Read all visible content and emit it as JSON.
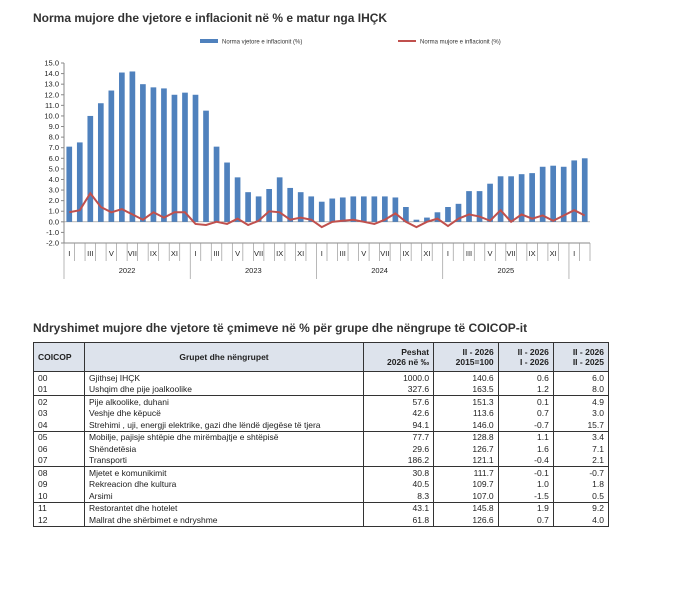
{
  "chart_data": {
    "type": "bar-line",
    "title": "Norma mujore dhe vjetore e inflacionit në % e matur nga IHÇK",
    "categories": [
      "I",
      null,
      "III",
      null,
      "V",
      null,
      "VII",
      null,
      "IX",
      null,
      "XI",
      null,
      "I",
      null,
      "III",
      null,
      "V",
      null,
      "VII",
      null,
      "IX",
      null,
      "XI",
      null,
      "I",
      null,
      "III",
      null,
      "V",
      null,
      "VII",
      null,
      "IX",
      null,
      "XI",
      null,
      "I",
      null,
      "III",
      null,
      "V",
      null,
      "VII",
      null,
      "IX",
      null,
      "XI",
      null,
      "I",
      null
    ],
    "year_labels": [
      "2022",
      "2023",
      "2024",
      "2025"
    ],
    "series": [
      {
        "name": "Norma vjetore e inflacionit (%)",
        "color": "#4f81bd",
        "kind": "bar",
        "values": [
          7.1,
          7.5,
          10.0,
          11.2,
          12.4,
          14.1,
          14.2,
          13.0,
          12.7,
          12.6,
          12.0,
          12.2,
          12.0,
          10.5,
          7.1,
          5.6,
          4.2,
          2.8,
          2.4,
          3.1,
          4.2,
          3.2,
          2.8,
          2.4,
          1.9,
          2.2,
          2.3,
          2.4,
          2.4,
          2.4,
          2.4,
          2.3,
          1.4,
          0.2,
          0.4,
          0.9,
          1.4,
          1.7,
          2.9,
          2.9,
          3.6,
          4.3,
          4.3,
          4.5,
          4.6,
          5.2,
          5.3,
          5.2,
          5.8,
          6.0
        ]
      },
      {
        "name": "Norma mujore e inflacionit (%)",
        "color": "#c0504d",
        "kind": "line",
        "values": [
          0.9,
          1.1,
          2.7,
          1.4,
          0.9,
          1.2,
          0.7,
          0.2,
          0.9,
          0.4,
          0.9,
          0.9,
          -0.2,
          -0.3,
          0.0,
          -0.2,
          0.3,
          -0.3,
          0.1,
          1.0,
          0.9,
          0.2,
          0.4,
          0.2,
          -0.5,
          0.0,
          0.1,
          0.2,
          0.0,
          -0.2,
          0.2,
          0.8,
          0.0,
          -0.5,
          0.0,
          0.3,
          -0.4,
          0.3,
          0.7,
          0.5,
          0.1,
          1.1,
          0.0,
          0.7,
          0.3,
          0.6,
          0.1,
          0.6,
          1.1,
          0.6
        ]
      }
    ],
    "ylim": [
      -2,
      15
    ],
    "yticks": [
      {
        "value": -2,
        "label": "-2.0"
      },
      {
        "value": -1,
        "label": "-1.0"
      },
      {
        "value": 0,
        "label": "0.0"
      },
      {
        "value": 1,
        "label": "1.0"
      },
      {
        "value": 2,
        "label": "2.0"
      },
      {
        "value": 3,
        "label": "3.0"
      },
      {
        "value": 4,
        "label": "4.0"
      },
      {
        "value": 5,
        "label": "5.0"
      },
      {
        "value": 6,
        "label": "6.0"
      },
      {
        "value": 7,
        "label": "7.0"
      },
      {
        "value": 8,
        "label": "8.0"
      },
      {
        "value": 9,
        "label": "9.0"
      },
      {
        "value": 10,
        "label": "10.0"
      },
      {
        "value": 11,
        "label": "11.0"
      },
      {
        "value": 12,
        "label": "12.0"
      },
      {
        "value": 13,
        "label": "13.0"
      },
      {
        "value": 14,
        "label": "14.0"
      },
      {
        "value": 15,
        "label": "15.0"
      }
    ],
    "grid": false,
    "legend": "top"
  },
  "table": {
    "title": "Ndryshimet mujore dhe vjetore të çmimeve në % për grupe dhe nëngrupe të COICOP-it",
    "headers": [
      [
        "COICOP"
      ],
      [
        "Grupet dhe nëngrupet"
      ],
      [
        "Peshat",
        "2026 në ‰"
      ],
      [
        "II - 2026",
        "2015=100"
      ],
      [
        "II - 2026",
        "I - 2026"
      ],
      [
        "II - 2026",
        "II - 2025"
      ]
    ],
    "rows": [
      [
        "00",
        "Gjithsej IHÇK",
        "1000.0",
        "140.6",
        "0.6",
        "6.0"
      ],
      [
        "01",
        "Ushqim dhe pije joalkoolike",
        "327.6",
        "163.5",
        "1.2",
        "8.0"
      ],
      [
        "02",
        "Pije alkoolike, duhani",
        "57.6",
        "151.3",
        "0.1",
        "4.9"
      ],
      [
        "03",
        "Veshje dhe këpucë",
        "42.6",
        "113.6",
        "0.7",
        "3.0"
      ],
      [
        "04",
        "Strehimi , uji, energji elektrike, gazi dhe lëndë djegëse të tjera",
        "94.1",
        "146.0",
        "-0.7",
        "15.7"
      ],
      [
        "05",
        "Mobilje, pajisje shtëpie dhe mirëmbajtje e shtëpisë",
        "77.7",
        "128.8",
        "1.1",
        "3.4"
      ],
      [
        "06",
        "Shëndetësia",
        "29.6",
        "126.7",
        "1.6",
        "7.1"
      ],
      [
        "07",
        "Transporti",
        "186.2",
        "121.1",
        "-0.4",
        "2.1"
      ],
      [
        "08",
        "Mjetet e komunikimit",
        "30.8",
        "111.7",
        "-0.1",
        "-0.7"
      ],
      [
        "09",
        "Rekreacion dhe kultura",
        "40.5",
        "109.7",
        "1.0",
        "1.8"
      ],
      [
        "10",
        "Arsimi",
        "8.3",
        "107.0",
        "-1.5",
        "0.5"
      ],
      [
        "11",
        "Restorantet dhe hotelet",
        "43.1",
        "145.8",
        "1.9",
        "9.2"
      ],
      [
        "12",
        "Mallrat dhe shërbimet e ndryshme",
        "61.8",
        "126.6",
        "0.7",
        "4.0"
      ]
    ]
  }
}
